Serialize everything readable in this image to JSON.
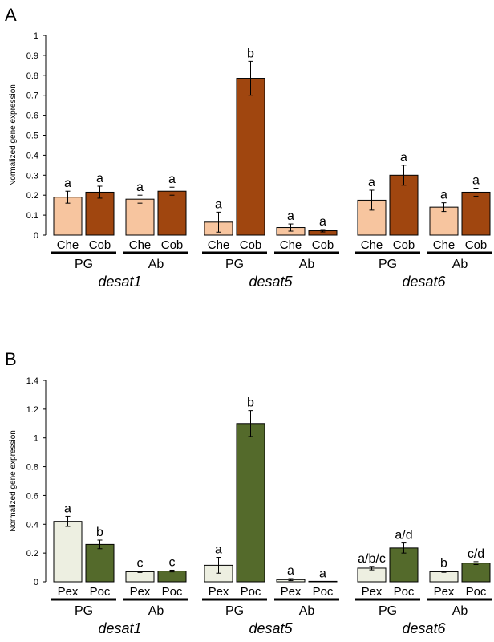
{
  "chart_data": [
    {
      "panel": "A",
      "type": "bar",
      "ylabel": "Normalized gene expression",
      "ylim": [
        0,
        1
      ],
      "yticks": [
        "0",
        "0.1",
        "0.2",
        "0.3",
        "0.4",
        "0.5",
        "0.6",
        "0.7",
        "0.8",
        "0.9",
        "1"
      ],
      "colors": {
        "Che": "#f7c59f",
        "Cob": "#a0460f"
      },
      "genes": [
        {
          "name": "desat1",
          "groups": [
            {
              "name": "PG",
              "bars": [
                {
                  "cat": "Che",
                  "value": 0.19,
                  "err": 0.03,
                  "sig": "a"
                },
                {
                  "cat": "Cob",
                  "value": 0.215,
                  "err": 0.03,
                  "sig": "a"
                }
              ]
            },
            {
              "name": "Ab",
              "bars": [
                {
                  "cat": "Che",
                  "value": 0.18,
                  "err": 0.02,
                  "sig": "a"
                },
                {
                  "cat": "Cob",
                  "value": 0.22,
                  "err": 0.02,
                  "sig": "a"
                }
              ]
            }
          ]
        },
        {
          "name": "desat5",
          "groups": [
            {
              "name": "PG",
              "bars": [
                {
                  "cat": "Che",
                  "value": 0.065,
                  "err": 0.05,
                  "sig": "a"
                },
                {
                  "cat": "Cob",
                  "value": 0.785,
                  "err": 0.085,
                  "sig": "b"
                }
              ]
            },
            {
              "name": "Ab",
              "bars": [
                {
                  "cat": "Che",
                  "value": 0.038,
                  "err": 0.018,
                  "sig": "a"
                },
                {
                  "cat": "Cob",
                  "value": 0.022,
                  "err": 0.006,
                  "sig": "a"
                }
              ]
            }
          ]
        },
        {
          "name": "desat6",
          "groups": [
            {
              "name": "PG",
              "bars": [
                {
                  "cat": "Che",
                  "value": 0.175,
                  "err": 0.05,
                  "sig": "a"
                },
                {
                  "cat": "Cob",
                  "value": 0.3,
                  "err": 0.05,
                  "sig": "a"
                }
              ]
            },
            {
              "name": "Ab",
              "bars": [
                {
                  "cat": "Che",
                  "value": 0.14,
                  "err": 0.022,
                  "sig": "a"
                },
                {
                  "cat": "Cob",
                  "value": 0.215,
                  "err": 0.02,
                  "sig": "a"
                }
              ]
            }
          ]
        }
      ]
    },
    {
      "panel": "B",
      "type": "bar",
      "ylabel": "Normalized gene expression",
      "ylim": [
        0,
        1.4
      ],
      "yticks": [
        "0",
        "0.2",
        "0.4",
        "0.6",
        "0.8",
        "1",
        "1.2",
        "1.4"
      ],
      "colors": {
        "Pex": "#edefe1",
        "Poc": "#546a2b"
      },
      "genes": [
        {
          "name": "desat1",
          "groups": [
            {
              "name": "PG",
              "bars": [
                {
                  "cat": "Pex",
                  "value": 0.42,
                  "err": 0.035,
                  "sig": "a"
                },
                {
                  "cat": "Poc",
                  "value": 0.26,
                  "err": 0.03,
                  "sig": "b"
                }
              ]
            },
            {
              "name": "Ab",
              "bars": [
                {
                  "cat": "Pex",
                  "value": 0.07,
                  "err": 0.005,
                  "sig": "c"
                },
                {
                  "cat": "Poc",
                  "value": 0.075,
                  "err": 0.006,
                  "sig": "c"
                }
              ]
            }
          ]
        },
        {
          "name": "desat5",
          "groups": [
            {
              "name": "PG",
              "bars": [
                {
                  "cat": "Pex",
                  "value": 0.115,
                  "err": 0.055,
                  "sig": "a"
                },
                {
                  "cat": "Poc",
                  "value": 1.1,
                  "err": 0.09,
                  "sig": "b"
                }
              ]
            },
            {
              "name": "Ab",
              "bars": [
                {
                  "cat": "Pex",
                  "value": 0.015,
                  "err": 0.007,
                  "sig": "a"
                },
                {
                  "cat": "Poc",
                  "value": 0.003,
                  "err": 0,
                  "sig": "a"
                }
              ]
            }
          ]
        },
        {
          "name": "desat6",
          "groups": [
            {
              "name": "PG",
              "bars": [
                {
                  "cat": "Pex",
                  "value": 0.095,
                  "err": 0.012,
                  "sig": "a/b/c"
                },
                {
                  "cat": "Poc",
                  "value": 0.235,
                  "err": 0.035,
                  "sig": "a/d"
                }
              ]
            },
            {
              "name": "Ab",
              "bars": [
                {
                  "cat": "Pex",
                  "value": 0.07,
                  "err": 0.004,
                  "sig": "b"
                },
                {
                  "cat": "Poc",
                  "value": 0.13,
                  "err": 0.01,
                  "sig": "c/d"
                }
              ]
            }
          ]
        }
      ]
    }
  ]
}
